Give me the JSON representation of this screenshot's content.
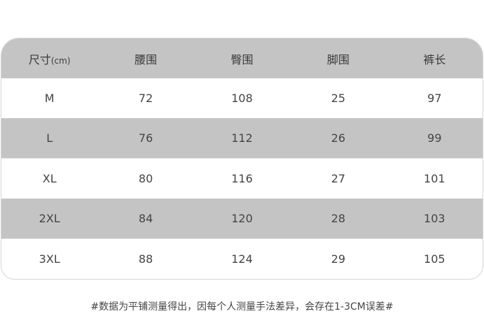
{
  "table": {
    "headers": [
      {
        "label": "尺寸",
        "unit": "(cm)"
      },
      {
        "label": "腰围"
      },
      {
        "label": "臀围"
      },
      {
        "label": "脚围"
      },
      {
        "label": "裤长"
      }
    ],
    "rows": [
      [
        "M",
        "72",
        "108",
        "25",
        "97"
      ],
      [
        "L",
        "76",
        "112",
        "26",
        "99"
      ],
      [
        "XL",
        "80",
        "116",
        "27",
        "101"
      ],
      [
        "2XL",
        "84",
        "120",
        "28",
        "103"
      ],
      [
        "3XL",
        "88",
        "124",
        "29",
        "105"
      ]
    ],
    "colors": {
      "striped_row": "#c4c4c4",
      "plain_row": "#ffffff"
    }
  },
  "note": "#数据为平铺测量得出，因每个人测量手法差异，会存在1-3CM误差#"
}
